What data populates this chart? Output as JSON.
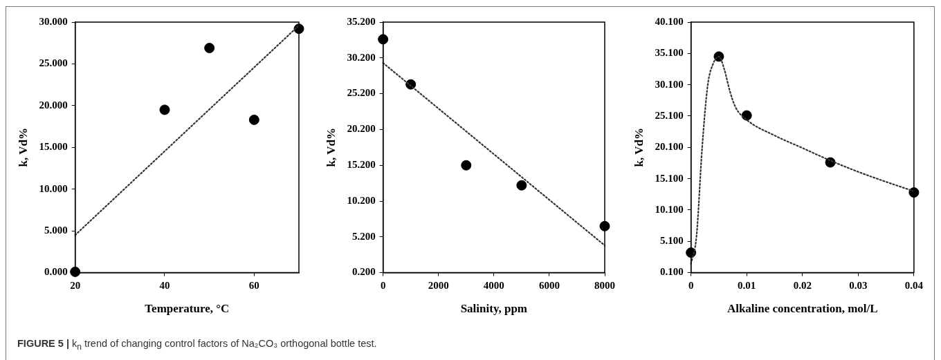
{
  "chart_data": [
    {
      "type": "scatter",
      "xlabel": "Temperature, °C",
      "ylabel": "k, Vd%",
      "xlim": [
        20,
        70
      ],
      "xticks": [
        20,
        40,
        60
      ],
      "ylim": [
        0,
        30
      ],
      "yticks": [
        {
          "value": 0,
          "label": "0.000"
        },
        {
          "value": 5,
          "label": "5.000"
        },
        {
          "value": 10,
          "label": "10.000"
        },
        {
          "value": 15,
          "label": "15.000"
        },
        {
          "value": 20,
          "label": "20.000"
        },
        {
          "value": 25,
          "label": "25.000"
        },
        {
          "value": 30,
          "label": "30.000"
        }
      ],
      "grid": false,
      "legend": false,
      "series": [
        {
          "type": "scatter",
          "color": "#000000",
          "marker": "circle",
          "x": [
            20,
            40,
            50,
            60,
            70
          ],
          "values": [
            0.1,
            19.5,
            26.9,
            18.3,
            29.2
          ]
        },
        {
          "type": "line",
          "color": "#333333",
          "marker": "none",
          "line_style": "dotted",
          "x": [
            20,
            70
          ],
          "values": [
            4.5,
            29.6
          ]
        }
      ],
      "annotations": [
        "FIGURE 5 | k$_{n}$ trend of changing control factors of Na₂CO₃ orthogonal bottle test."
      ]
    },
    {
      "type": "scatter",
      "xlabel": "Salinity, ppm",
      "ylabel": "k, Vd%",
      "xlim": [
        0,
        8000
      ],
      "xticks": [
        0,
        2000,
        4000,
        6000,
        8000
      ],
      "ylim": [
        0.2,
        35.2
      ],
      "yticks": [
        {
          "value": 0.2,
          "label": "0.200"
        },
        {
          "value": 5.2,
          "label": "5.200"
        },
        {
          "value": 10.2,
          "label": "10.200"
        },
        {
          "value": 15.2,
          "label": "15.200"
        },
        {
          "value": 20.2,
          "label": "20.200"
        },
        {
          "value": 25.2,
          "label": "25.200"
        },
        {
          "value": 30.2,
          "label": "30.200"
        },
        {
          "value": 35.2,
          "label": "35.200"
        }
      ],
      "grid": false,
      "legend": false,
      "series": [
        {
          "type": "scatter",
          "color": "#000000",
          "marker": "circle",
          "x": [
            0,
            1000,
            3000,
            5000,
            8000
          ],
          "values": [
            32.8,
            26.5,
            15.2,
            12.4,
            6.7
          ]
        },
        {
          "type": "line",
          "color": "#333333",
          "marker": "none",
          "line_style": "dotted",
          "x": [
            0,
            8000
          ],
          "values": [
            29.5,
            4.0
          ]
        }
      ]
    },
    {
      "type": "scatter",
      "xlabel": "Alkaline concentration, mol/L",
      "ylabel": "k, Vd%",
      "xlim": [
        0,
        0.04
      ],
      "xticks": [
        0,
        0.01,
        0.02,
        0.03,
        0.04
      ],
      "ylim": [
        0.1,
        40.1
      ],
      "yticks": [
        {
          "value": 0.1,
          "label": "0.100"
        },
        {
          "value": 5.1,
          "label": "5.100"
        },
        {
          "value": 10.1,
          "label": "10.100"
        },
        {
          "value": 15.1,
          "label": "15.100"
        },
        {
          "value": 20.1,
          "label": "20.100"
        },
        {
          "value": 25.1,
          "label": "25.100"
        },
        {
          "value": 30.1,
          "label": "30.100"
        },
        {
          "value": 35.1,
          "label": "35.100"
        },
        {
          "value": 40.1,
          "label": "40.100"
        }
      ],
      "grid": false,
      "legend": false,
      "series": [
        {
          "type": "scatter",
          "color": "#000000",
          "marker": "circle",
          "x": [
            0,
            0.005,
            0.01,
            0.025,
            0.04
          ],
          "values": [
            3.3,
            34.6,
            25.2,
            17.7,
            12.9
          ]
        },
        {
          "type": "line",
          "color": "#333333",
          "marker": "none",
          "line_style": "dotted",
          "x": [
            0,
            0.001,
            0.002,
            0.003,
            0.004,
            0.005,
            0.006,
            0.007,
            0.008,
            0.01,
            0.015,
            0.02,
            0.025,
            0.03,
            0.035,
            0.04
          ],
          "values": [
            1.5,
            6,
            20,
            30,
            33.5,
            34.6,
            32.5,
            29,
            26.5,
            24.5,
            22,
            20,
            18,
            16.2,
            14.6,
            13.1
          ]
        }
      ]
    }
  ]
}
